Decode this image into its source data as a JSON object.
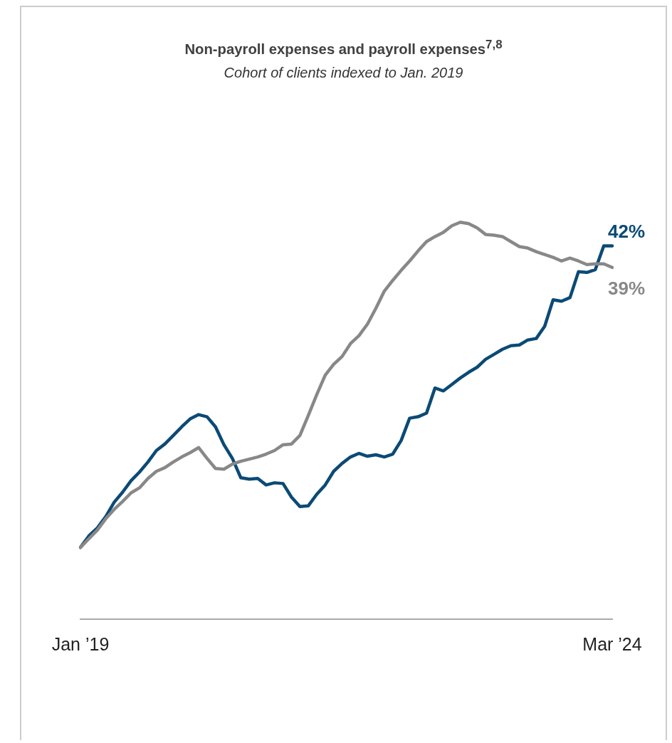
{
  "chart_data": {
    "type": "line",
    "title": "Non-payroll expenses and payroll expenses$^{7,8}$",
    "subtitle": "Cohort of clients indexed to Jan. 2019",
    "categories": [
      "Jan ’19",
      null,
      null,
      null,
      null,
      null,
      null,
      null,
      null,
      null,
      null,
      null,
      null,
      null,
      null,
      null,
      null,
      null,
      null,
      null,
      null,
      null,
      null,
      null,
      null,
      null,
      null,
      null,
      null,
      null,
      null,
      null,
      null,
      null,
      null,
      null,
      null,
      null,
      null,
      null,
      null,
      null,
      null,
      null,
      null,
      null,
      null,
      null,
      null,
      null,
      null,
      null,
      null,
      null,
      null,
      null,
      null,
      null,
      null,
      null,
      null,
      null,
      null,
      "Mar ’24"
    ],
    "series": [
      {
        "color": "#888888",
        "values": [
          0,
          1.2,
          2.4,
          4.0,
          5.3,
          6.4,
          7.6,
          8.3,
          9.6,
          10.6,
          11.1,
          11.9,
          12.6,
          13.2,
          13.9,
          12.4,
          11.0,
          10.9,
          11.6,
          12.0,
          12.3,
          12.6,
          13.0,
          13.5,
          14.3,
          14.4,
          15.6,
          18.4,
          21.3,
          24.0,
          25.5,
          26.6,
          28.4,
          29.5,
          31.1,
          33.3,
          35.7,
          37.2,
          38.6,
          39.9,
          41.3,
          42.6,
          43.3,
          43.9,
          44.8,
          45.3,
          45.1,
          44.5,
          43.6,
          43.5,
          43.3,
          42.6,
          41.9,
          41.7,
          41.2,
          40.8,
          40.4,
          39.9,
          40.3,
          39.9,
          39.4,
          39.5,
          39.5,
          39
        ],
        "value_labels": [
          null,
          null,
          null,
          null,
          null,
          null,
          null,
          null,
          null,
          null,
          null,
          null,
          null,
          null,
          null,
          null,
          null,
          null,
          null,
          null,
          null,
          null,
          null,
          null,
          null,
          null,
          null,
          null,
          null,
          null,
          null,
          null,
          null,
          null,
          null,
          null,
          null,
          null,
          null,
          null,
          null,
          null,
          null,
          null,
          null,
          null,
          null,
          null,
          null,
          null,
          null,
          null,
          null,
          null,
          null,
          null,
          null,
          null,
          null,
          null,
          null,
          null,
          null,
          "39%"
        ]
      },
      {
        "color": "#0b4a75",
        "values": [
          0,
          1.6,
          2.7,
          4.3,
          6.3,
          7.7,
          9.3,
          10.5,
          11.9,
          13.5,
          14.4,
          15.6,
          16.8,
          17.9,
          18.5,
          18.2,
          16.8,
          14.3,
          12.4,
          9.7,
          9.5,
          9.6,
          8.7,
          9.0,
          8.9,
          7.0,
          5.7,
          5.8,
          7.4,
          8.7,
          10.6,
          11.7,
          12.6,
          13.1,
          12.7,
          12.9,
          12.6,
          13.0,
          14.9,
          18.0,
          18.2,
          18.7,
          22.2,
          21.8,
          22.7,
          23.6,
          24.4,
          25.1,
          26.2,
          26.9,
          27.6,
          28.1,
          28.2,
          28.9,
          29.1,
          30.8,
          34.5,
          34.3,
          34.8,
          38.4,
          38.3,
          38.7,
          42.0,
          42
        ],
        "value_labels": [
          null,
          null,
          null,
          null,
          null,
          null,
          null,
          null,
          null,
          null,
          null,
          null,
          null,
          null,
          null,
          null,
          null,
          null,
          null,
          null,
          null,
          null,
          null,
          null,
          null,
          null,
          null,
          null,
          null,
          null,
          null,
          null,
          null,
          null,
          null,
          null,
          null,
          null,
          null,
          null,
          null,
          null,
          null,
          null,
          null,
          null,
          null,
          null,
          null,
          null,
          null,
          null,
          null,
          null,
          null,
          null,
          null,
          null,
          null,
          null,
          null,
          null,
          null,
          "42%"
        ]
      }
    ]
  }
}
